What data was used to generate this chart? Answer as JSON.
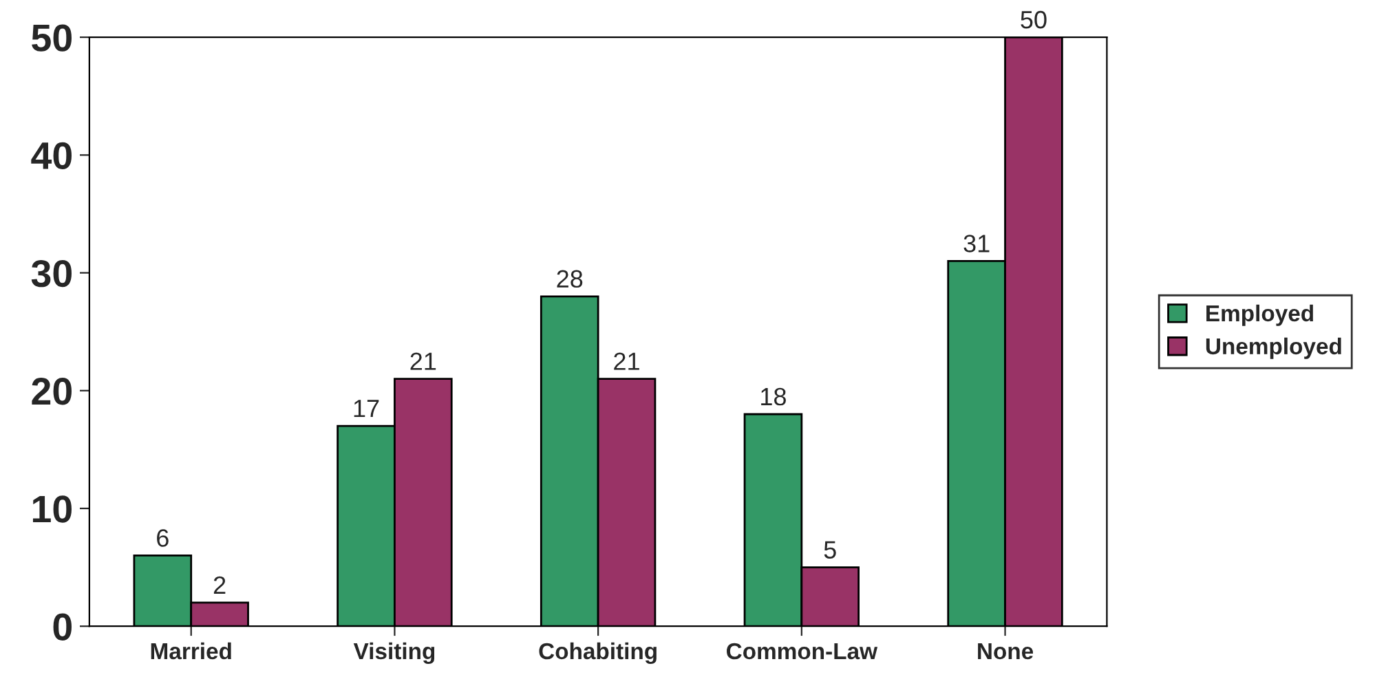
{
  "chart_data": {
    "type": "bar",
    "categories": [
      "Married",
      "Visiting",
      "Cohabiting",
      "Common-Law",
      "None"
    ],
    "series": [
      {
        "name": "Employed",
        "color": "#339966",
        "values": [
          6,
          17,
          28,
          18,
          31
        ]
      },
      {
        "name": "Unemployed",
        "color": "#993366",
        "values": [
          2,
          21,
          21,
          5,
          50
        ]
      }
    ],
    "ylim": [
      0,
      50
    ],
    "yticks": [
      0,
      10,
      20,
      30,
      40,
      50
    ],
    "data_labels": true,
    "legend": "right",
    "grid": false
  }
}
